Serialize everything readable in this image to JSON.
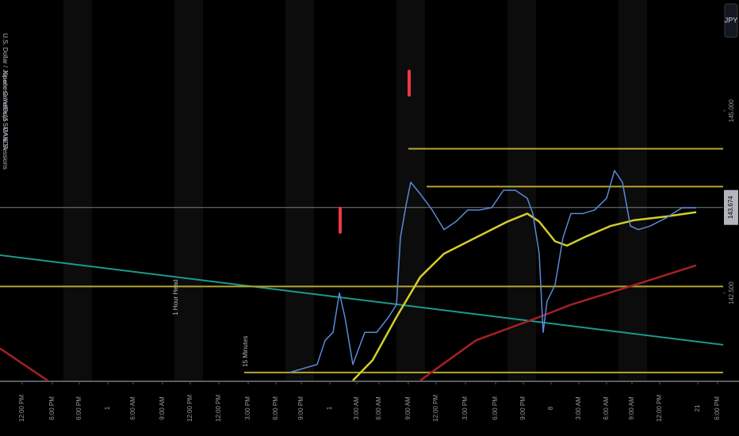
{
  "chart_data": {
    "type": "line",
    "legend_lines": [
      "U.S. Dollar / Japanese Yen · 15 · OANDA",
      "Kinetic Candles",
      "Dojo SMA & Sessions"
    ],
    "currency": "JPY",
    "annotations": [
      {
        "text": "1 Hour Head",
        "x": 222,
        "y": 142.44
      },
      {
        "text": "15 Minutes",
        "x": 310,
        "y": 141.7
      }
    ],
    "signals": [
      {
        "x": 516,
        "y": 145.38,
        "color": "#f23645"
      },
      {
        "x": 429,
        "y": 143.5,
        "color": "#f23645"
      }
    ],
    "xlim": [
      0,
      912
    ],
    "xticks": [
      {
        "value": 28,
        "label": "12:00 PM"
      },
      {
        "value": 66,
        "label": "6:00 PM"
      },
      {
        "value": 100,
        "label": "6:00 PM"
      },
      {
        "value": 136,
        "label": "1"
      },
      {
        "value": 168,
        "label": "6:00 AM"
      },
      {
        "value": 205,
        "label": "9:00 AM"
      },
      {
        "value": 240,
        "label": "12:00 PM"
      },
      {
        "value": 276,
        "label": "12:00 PM"
      },
      {
        "value": 313,
        "label": "3:00 PM"
      },
      {
        "value": 348,
        "label": "6:00 PM"
      },
      {
        "value": 380,
        "label": "9:00 PM"
      },
      {
        "value": 416,
        "label": "1"
      },
      {
        "value": 450,
        "label": "3:00 AM"
      },
      {
        "value": 478,
        "label": "6:00 AM"
      },
      {
        "value": 515,
        "label": "9:00 AM"
      },
      {
        "value": 550,
        "label": "12:00 PM"
      },
      {
        "value": 587,
        "label": "3:00 PM"
      },
      {
        "value": 625,
        "label": "6:00 PM"
      },
      {
        "value": 660,
        "label": "9:00 PM"
      },
      {
        "value": 695,
        "label": "8"
      },
      {
        "value": 730,
        "label": "3:00 AM"
      },
      {
        "value": 765,
        "label": "6:00 AM"
      },
      {
        "value": 797,
        "label": "9:00 AM"
      },
      {
        "value": 832,
        "label": "12:00 PM"
      },
      {
        "value": 880,
        "label": "21"
      },
      {
        "value": 905,
        "label": "6:00 PM"
      }
    ],
    "ylim": [
      141.3,
      146.52
    ],
    "yticks": [
      {
        "value": 142.5,
        "label": "142.500"
      },
      {
        "value": 145,
        "label": "145.000"
      }
    ],
    "last_price": 143.674,
    "last_price_color": "#b2b5be",
    "series": [
      {
        "color": "#1a9b8a",
        "width": 2,
        "x": [
          0,
          912
        ],
        "values": [
          143.02,
          141.79
        ]
      },
      {
        "color": "#b5a532",
        "width": 2,
        "x": [
          515,
          912
        ],
        "values": [
          144.48,
          144.48
        ]
      },
      {
        "color": "#b5a532",
        "width": 2,
        "x": [
          538,
          912
        ],
        "values": [
          143.96,
          143.96
        ]
      },
      {
        "color": "#b5a532",
        "width": 2,
        "x": [
          0,
          912
        ],
        "values": [
          142.59,
          142.59
        ]
      },
      {
        "color": "#b5a532",
        "width": 2,
        "x": [
          308,
          912
        ],
        "values": [
          141.41,
          141.41
        ]
      },
      {
        "color": "#a82024",
        "width": 2.5,
        "x": [
          0,
          60
        ],
        "values": [
          141.74,
          141.3
        ]
      },
      {
        "color": "#a82024",
        "width": 2.5,
        "x": [
          530,
          600,
          680,
          720,
          800,
          878
        ],
        "values": [
          141.3,
          141.85,
          142.17,
          142.34,
          142.61,
          142.88
        ]
      },
      {
        "color": "#d4cc2c",
        "width": 2.5,
        "x": [
          445,
          470,
          500,
          530,
          560,
          600,
          640,
          665,
          680,
          700,
          715,
          740,
          770,
          800,
          840,
          878
        ],
        "values": [
          141.3,
          141.58,
          142.17,
          142.72,
          143.04,
          143.26,
          143.48,
          143.59,
          143.48,
          143.21,
          143.15,
          143.28,
          143.42,
          143.5,
          143.55,
          143.61
        ]
      },
      {
        "color": "#5b8ad6",
        "width": 1.5,
        "x": [
          365,
          400,
          410,
          420,
          428,
          435,
          445,
          460,
          475,
          490,
          500,
          505,
          512,
          518,
          530,
          545,
          560,
          575,
          590,
          605,
          620,
          635,
          650,
          665,
          672,
          680,
          685,
          690,
          700,
          710,
          720,
          735,
          750,
          765,
          775,
          785,
          795,
          805,
          820,
          840,
          860,
          878
        ],
        "values": [
          141.41,
          141.52,
          141.85,
          141.96,
          142.5,
          142.17,
          141.52,
          141.96,
          141.96,
          142.17,
          142.34,
          143.26,
          143.7,
          144.02,
          143.86,
          143.64,
          143.37,
          143.48,
          143.64,
          143.64,
          143.67,
          143.91,
          143.91,
          143.8,
          143.59,
          143.04,
          141.96,
          142.39,
          142.61,
          143.26,
          143.59,
          143.59,
          143.64,
          143.8,
          144.18,
          144.02,
          143.42,
          143.37,
          143.42,
          143.53,
          143.67,
          143.67
        ]
      }
    ]
  }
}
